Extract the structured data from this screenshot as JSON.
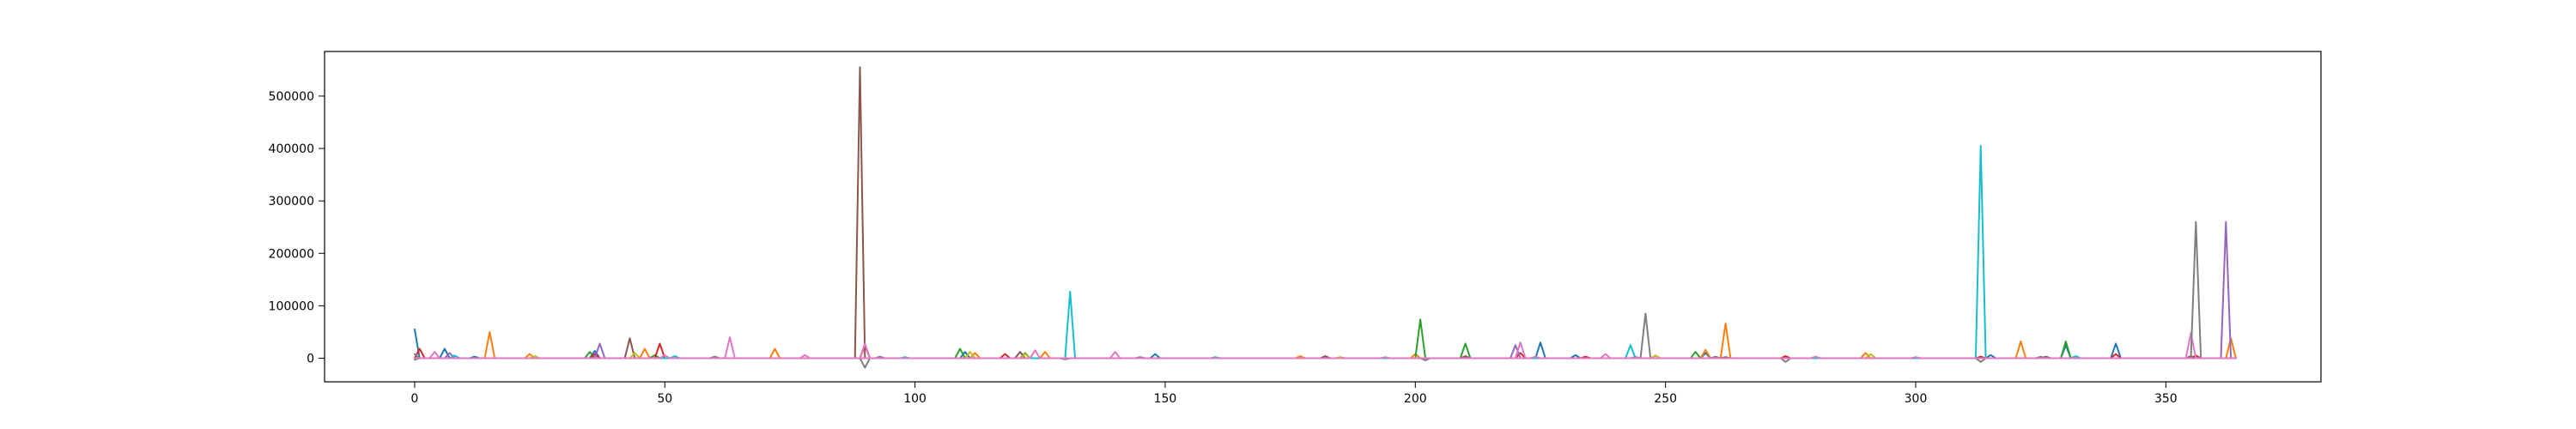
{
  "chart_data": {
    "type": "line",
    "title": "",
    "xlabel": "",
    "ylabel": "",
    "xlim": [
      -18,
      381
    ],
    "ylim": [
      -45000,
      585000
    ],
    "xticks": [
      0,
      50,
      100,
      150,
      200,
      250,
      300,
      350
    ],
    "yticks": [
      0,
      100000,
      200000,
      300000,
      400000,
      500000
    ],
    "xtick_labels": [
      "0",
      "50",
      "100",
      "150",
      "200",
      "250",
      "300",
      "350"
    ],
    "ytick_labels": [
      "0",
      "100000",
      "200000",
      "300000",
      "400000",
      "500000"
    ],
    "grid": false,
    "legend": "none",
    "x_max": 364,
    "series": [
      {
        "color": "#1f77b4",
        "points": [
          [
            0,
            55000
          ],
          [
            6,
            18000
          ],
          [
            12,
            3000
          ],
          [
            36,
            14000
          ],
          [
            110,
            12000
          ],
          [
            148,
            8000
          ],
          [
            225,
            30000
          ],
          [
            232,
            6000
          ],
          [
            258,
            10000
          ],
          [
            315,
            6000
          ],
          [
            330,
            25000
          ],
          [
            340,
            28000
          ]
        ]
      },
      {
        "color": "#ff7f0e",
        "points": [
          [
            15,
            50000
          ],
          [
            23,
            8000
          ],
          [
            46,
            18000
          ],
          [
            72,
            18000
          ],
          [
            112,
            10000
          ],
          [
            126,
            12000
          ],
          [
            177,
            4000
          ],
          [
            200,
            8000
          ],
          [
            258,
            16000
          ],
          [
            262,
            66000
          ],
          [
            290,
            10000
          ],
          [
            321,
            32000
          ],
          [
            363,
            38000
          ]
        ]
      },
      {
        "color": "#2ca02c",
        "points": [
          [
            35,
            12000
          ],
          [
            48,
            6000
          ],
          [
            109,
            18000
          ],
          [
            122,
            10000
          ],
          [
            201,
            74000
          ],
          [
            210,
            28000
          ],
          [
            256,
            12000
          ],
          [
            330,
            32000
          ]
        ]
      },
      {
        "color": "#d62728",
        "points": [
          [
            1,
            18000
          ],
          [
            36,
            8000
          ],
          [
            49,
            28000
          ],
          [
            90,
            25000
          ],
          [
            118,
            8000
          ],
          [
            221,
            10000
          ],
          [
            234,
            3000
          ],
          [
            274,
            4000
          ],
          [
            313,
            3000
          ],
          [
            340,
            8000
          ],
          [
            356,
            5000
          ]
        ]
      },
      {
        "color": "#9467bd",
        "points": [
          [
            7,
            10000
          ],
          [
            37,
            28000
          ],
          [
            93,
            3000
          ],
          [
            145,
            2000
          ],
          [
            220,
            25000
          ],
          [
            362,
            260000
          ]
        ]
      },
      {
        "color": "#8c564b",
        "points": [
          [
            43,
            38000
          ],
          [
            89,
            555000
          ],
          [
            121,
            12000
          ],
          [
            182,
            4000
          ],
          [
            210,
            4000
          ],
          [
            262,
            2000
          ],
          [
            326,
            3000
          ],
          [
            355,
            4000
          ]
        ]
      },
      {
        "color": "#e377c2",
        "points": [
          [
            4,
            12000
          ],
          [
            63,
            40000
          ],
          [
            78,
            6000
          ],
          [
            90,
            28000
          ],
          [
            140,
            12000
          ],
          [
            221,
            30000
          ],
          [
            238,
            8000
          ],
          [
            244,
            3000
          ],
          [
            355,
            48000
          ]
        ]
      },
      {
        "color": "#7f7f7f",
        "points": [
          [
            0,
            8000
          ],
          [
            0,
            -3000
          ],
          [
            60,
            3000
          ],
          [
            90,
            -18000
          ],
          [
            130,
            -2000
          ],
          [
            202,
            -4000
          ],
          [
            246,
            85000
          ],
          [
            260,
            3000
          ],
          [
            274,
            -7000
          ],
          [
            313,
            -7000
          ],
          [
            325,
            3000
          ],
          [
            356,
            260000
          ]
        ]
      },
      {
        "color": "#bcbd22",
        "points": [
          [
            24,
            4000
          ],
          [
            44,
            10000
          ],
          [
            111,
            12000
          ],
          [
            122,
            8000
          ],
          [
            185,
            2000
          ],
          [
            248,
            5000
          ],
          [
            291,
            8000
          ]
        ]
      },
      {
        "color": "#17becf",
        "points": [
          [
            8,
            5000
          ],
          [
            52,
            4000
          ],
          [
            98,
            2000
          ],
          [
            131,
            127000
          ],
          [
            160,
            2000
          ],
          [
            243,
            25000
          ],
          [
            313,
            405000
          ],
          [
            332,
            4000
          ]
        ]
      },
      {
        "color": "#e377c2",
        "points": [
          [
            50,
            6000
          ],
          [
            124,
            15000
          ],
          [
            194,
            2000
          ],
          [
            224,
            3000
          ],
          [
            280,
            3000
          ],
          [
            300,
            2000
          ]
        ]
      }
    ]
  }
}
